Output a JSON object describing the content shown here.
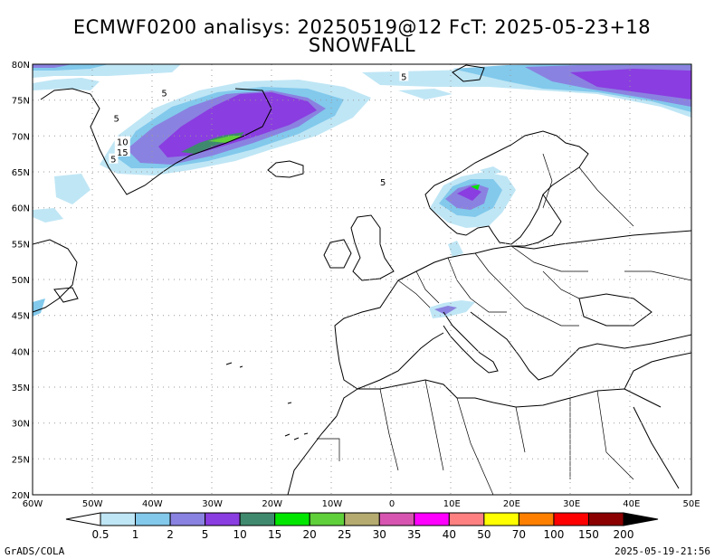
{
  "header": {
    "title_line1": "ECMWF0200 analisys: 20250519@12 FcT: 2025-05-23+18",
    "title_line2": "SNOWFALL"
  },
  "map": {
    "lon_range": [
      -60,
      50
    ],
    "lat_range": [
      20,
      80
    ],
    "lon_ticks": [
      "60W",
      "50W",
      "40W",
      "30W",
      "20W",
      "10W",
      "0",
      "10E",
      "20E",
      "30E",
      "40E",
      "50E"
    ],
    "lat_ticks": [
      "80N",
      "75N",
      "70N",
      "65N",
      "60N",
      "55N",
      "50N",
      "45N",
      "40N",
      "35N",
      "30N",
      "25N",
      "20N"
    ],
    "grid": "dotted",
    "contour_labels": [
      {
        "text": "5",
        "lon": -38,
        "lat": 76
      },
      {
        "text": "5",
        "lon": -46,
        "lat": 72.5
      },
      {
        "text": "10",
        "lon": -45,
        "lat": 69.2
      },
      {
        "text": "15",
        "lon": -45,
        "lat": 67.8
      },
      {
        "text": "5",
        "lon": -46.5,
        "lat": 66.8
      },
      {
        "text": "5",
        "lon": 2,
        "lat": 78.3
      },
      {
        "text": "5",
        "lon": -1.5,
        "lat": 63.6
      }
    ]
  },
  "colorbar": {
    "labels": [
      "0.5",
      "1",
      "2",
      "5",
      "10",
      "15",
      "20",
      "25",
      "30",
      "35",
      "40",
      "50",
      "70",
      "100",
      "150",
      "200"
    ],
    "colors": [
      "#ffffff",
      "#bfe6f5",
      "#82c9ec",
      "#8a82e0",
      "#8a3de0",
      "#3f8a6e",
      "#00e600",
      "#5fcf3a",
      "#b5ab70",
      "#d755b0",
      "#ff00ff",
      "#ff8080",
      "#ffff00",
      "#ff8000",
      "#ff0000",
      "#8b0000",
      "#000000"
    ]
  },
  "footer": {
    "credit_left": "GrADS/COLA",
    "credit_right": "2025-05-19-21:56"
  }
}
